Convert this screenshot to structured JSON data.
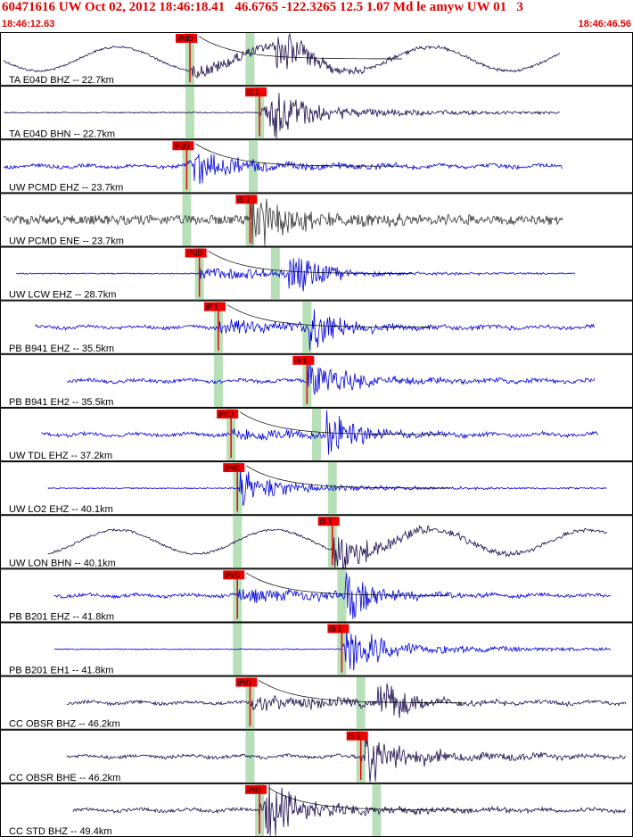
{
  "header": {
    "title": "60471616 UW Oct 02, 2012 18:46:18.41   46.6765 -122.3265 12.5 1.07 Md le amyw UW 01   3",
    "time_start": "18:46:12.63",
    "time_end": "18:46:46.56"
  },
  "colors": {
    "header_text": "#e00000",
    "pick_box": "#ee0000",
    "pick_band": "#b8e0b8",
    "trace_blue": "#0000dd",
    "trace_dark": "#1a0a4a",
    "trace_gray": "#333333",
    "coda_fit": "#cc0000"
  },
  "chart_data": {
    "type": "line",
    "title": "60471616 UW Oct 02, 2012 18:46:18.41",
    "time_range": [
      "18:46:12.63",
      "18:46:46.56"
    ],
    "traces": [
      {
        "label": "TA E04D BHZ -- 22.7km",
        "pick": "iPdD",
        "pick_t": 0.3,
        "s_t": 0.395,
        "color": "dark",
        "start": 0.0,
        "end": 0.885,
        "amp": 0.55,
        "bg": "lowfreq",
        "burst_t": 0.44
      },
      {
        "label": "TA E04D BHN -- 22.7km",
        "pick": "iS 1",
        "pick_t": 0.41,
        "s_t": 0.3,
        "color": "dark",
        "start": 0.0,
        "end": 0.885,
        "amp": 0.65,
        "bg": "quiet",
        "burst_t": 0.43
      },
      {
        "label": "UW PCMD EHZ -- 23.7km",
        "pick": "iPdD",
        "pick_t": 0.295,
        "s_t": 0.4,
        "color": "blue",
        "start": 0.0,
        "end": 0.89,
        "amp": 0.5,
        "bg": "noise",
        "burst_t": 0.31
      },
      {
        "label": "UW PCMD ENE -- 23.7km",
        "pick": "iS 1",
        "pick_t": 0.395,
        "s_t": 0.295,
        "color": "gray",
        "start": 0.0,
        "end": 0.89,
        "amp": 0.7,
        "bg": "heavy",
        "burst_t": 0.4
      },
      {
        "label": "UW LCW EHZ -- 28.7km",
        "pick": "iPdD",
        "pick_t": 0.315,
        "s_t": 0.435,
        "color": "blue",
        "start": 0.02,
        "end": 0.91,
        "amp": 0.55,
        "bg": "quiet",
        "burst_t": 0.46
      },
      {
        "label": "PB B941 EHZ -- 35.5km",
        "pick": "iP 1",
        "pick_t": 0.345,
        "s_t": 0.485,
        "color": "blue",
        "start": 0.05,
        "end": 0.94,
        "amp": 0.6,
        "bg": "noise",
        "burst_t": 0.49
      },
      {
        "label": "PB B941 EH2 -- 35.5km",
        "pick": "iS 1",
        "pick_t": 0.485,
        "s_t": 0.345,
        "color": "blue",
        "start": 0.1,
        "end": 0.94,
        "amp": 0.5,
        "bg": "noise",
        "burst_t": 0.49
      },
      {
        "label": "UW TDL EHZ -- 37.2km",
        "pick": "iPcD",
        "pick_t": 0.365,
        "s_t": 0.5,
        "color": "blue",
        "start": 0.06,
        "end": 0.945,
        "amp": 0.55,
        "bg": "noise",
        "burst_t": 0.52
      },
      {
        "label": "UW LO2 EHZ -- 40.1km",
        "pick": "iPdD",
        "pick_t": 0.375,
        "s_t": 0.525,
        "color": "blue",
        "start": 0.07,
        "end": 0.96,
        "amp": 0.45,
        "bg": "quiet",
        "burst_t": 0.38
      },
      {
        "label": "UW LON BHN -- 40.1km",
        "pick": "iS 1",
        "pick_t": 0.525,
        "s_t": 0.375,
        "color": "dark",
        "start": 0.07,
        "end": 0.96,
        "amp": 0.55,
        "bg": "lowfreq",
        "burst_t": 0.53
      },
      {
        "label": "PB B201 EHZ -- 41.8km",
        "pick": "iPcD",
        "pick_t": 0.375,
        "s_t": 0.54,
        "color": "blue",
        "start": 0.08,
        "end": 0.965,
        "amp": 0.55,
        "bg": "noise",
        "burst_t": 0.55
      },
      {
        "label": "PB B201 EH1 -- 41.8km",
        "pick": "iS 1",
        "pick_t": 0.54,
        "s_t": 0.375,
        "color": "blue",
        "start": 0.08,
        "end": 0.965,
        "amp": 0.6,
        "bg": "quiet",
        "burst_t": 0.55
      },
      {
        "label": "CC OBSR BHZ -- 46.2km",
        "pick": "iPd1",
        "pick_t": 0.395,
        "s_t": 0.57,
        "color": "dark",
        "start": 0.1,
        "end": 0.99,
        "amp": 0.6,
        "bg": "noise",
        "burst_t": 0.6
      },
      {
        "label": "CC OBSR BHE -- 46.2km",
        "pick": "iS 1",
        "pick_t": 0.57,
        "s_t": 0.395,
        "color": "dark",
        "start": 0.1,
        "end": 0.99,
        "amp": 0.6,
        "bg": "noise",
        "burst_t": 0.58
      },
      {
        "label": "CC STD BHZ -- 49.4km",
        "pick": "iPd1",
        "pick_t": 0.41,
        "s_t": 0.595,
        "color": "dark",
        "start": 0.11,
        "end": 0.99,
        "amp": 0.65,
        "bg": "noise",
        "burst_t": 0.42
      }
    ]
  }
}
